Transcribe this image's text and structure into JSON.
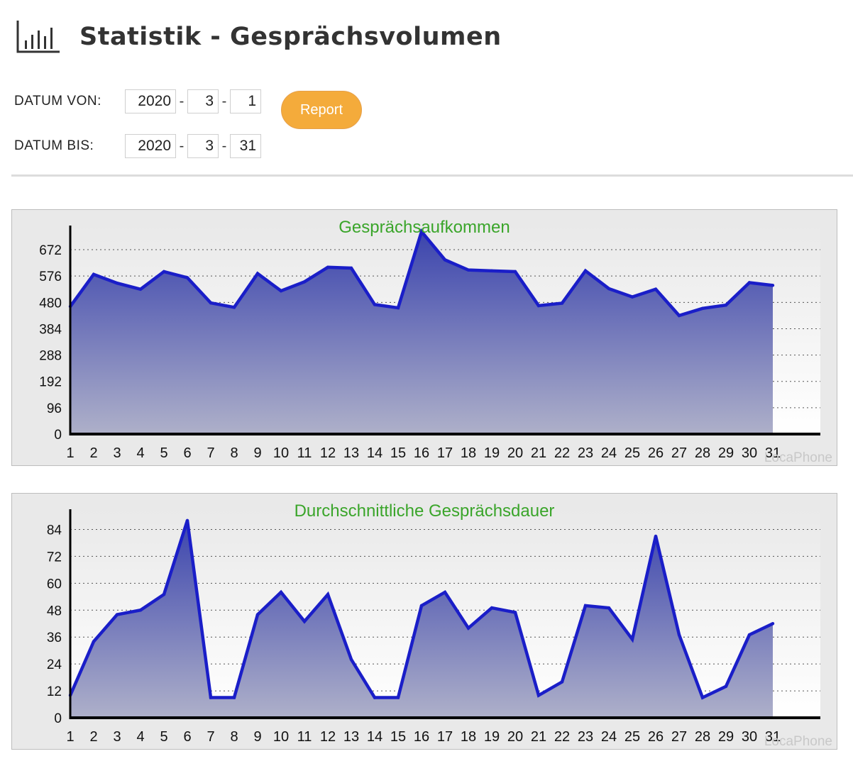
{
  "header": {
    "title": "Statistik - Gesprächsvolumen",
    "icon": "bar-chart-icon"
  },
  "form": {
    "from": {
      "label": "DATUM VON:",
      "year": "2020",
      "month": "3",
      "day": "1"
    },
    "to": {
      "label": "DATUM BIS:",
      "year": "2020",
      "month": "3",
      "day": "31"
    },
    "separator": "-",
    "report_label": "Report",
    "report_color": "#f4ab3b"
  },
  "chart_data": [
    {
      "type": "area",
      "title": "Gesprächsaufkommen",
      "watermark": "LocaPhone",
      "x": [
        1,
        2,
        3,
        4,
        5,
        6,
        7,
        8,
        9,
        10,
        11,
        12,
        13,
        14,
        15,
        16,
        17,
        18,
        19,
        20,
        21,
        22,
        23,
        24,
        25,
        26,
        27,
        28,
        29,
        30,
        31
      ],
      "values": [
        465,
        582,
        550,
        528,
        592,
        570,
        478,
        462,
        585,
        522,
        555,
        608,
        605,
        472,
        460,
        738,
        635,
        598,
        595,
        592,
        468,
        477,
        595,
        530,
        500,
        528,
        432,
        458,
        470,
        552,
        542
      ],
      "ylim": [
        0,
        760
      ],
      "yticks": [
        0,
        96,
        192,
        288,
        384,
        480,
        576,
        672
      ],
      "grid": true,
      "line_color": "#1a1ec8"
    },
    {
      "type": "area",
      "title": "Durchschnittliche Gesprächsdauer",
      "watermark": "LocaPhone",
      "x": [
        1,
        2,
        3,
        4,
        5,
        6,
        7,
        8,
        9,
        10,
        11,
        12,
        13,
        14,
        15,
        16,
        17,
        18,
        19,
        20,
        21,
        22,
        23,
        24,
        25,
        26,
        27,
        28,
        29,
        30,
        31
      ],
      "values": [
        10,
        34,
        46,
        48,
        55,
        88,
        9,
        9,
        46,
        56,
        43,
        55,
        26,
        9,
        9,
        50,
        56,
        40,
        49,
        47,
        10,
        16,
        50,
        49,
        35,
        81,
        37,
        9,
        14,
        37,
        42
      ],
      "ylim": [
        0,
        93
      ],
      "yticks": [
        0,
        12,
        24,
        36,
        48,
        60,
        72,
        84
      ],
      "grid": true,
      "line_color": "#1a1ec8"
    }
  ]
}
